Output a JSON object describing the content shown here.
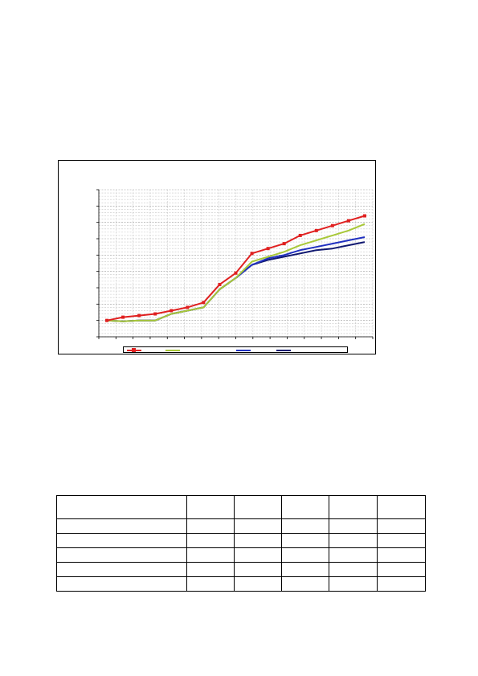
{
  "chart_data": {
    "type": "line",
    "title": "",
    "xlabel": "",
    "ylabel": "",
    "x": [
      1,
      2,
      3,
      4,
      5,
      6,
      7,
      8,
      9,
      10,
      11,
      12,
      13,
      14,
      15,
      16,
      17
    ],
    "ylim": [
      0,
      180
    ],
    "grid": true,
    "legend_position": "bottom",
    "series": [
      {
        "color": "#e02020",
        "marker": "square",
        "values": [
          20,
          24,
          26,
          28,
          32,
          36,
          42,
          64,
          78,
          102,
          108,
          114,
          124,
          130,
          136,
          142,
          148
        ]
      },
      {
        "color": "#a8c838",
        "marker": "none",
        "values": [
          20,
          19,
          20,
          20,
          28,
          32,
          36,
          58,
          72,
          92,
          98,
          104,
          112,
          118,
          124,
          130,
          138
        ]
      },
      {
        "color": "#2030c0",
        "marker": "none",
        "values": [
          20,
          19,
          20,
          20,
          28,
          32,
          36,
          58,
          72,
          88,
          96,
          100,
          106,
          110,
          114,
          118,
          122
        ]
      },
      {
        "color": "#101870",
        "marker": "none",
        "values": [
          20,
          19,
          20,
          20,
          28,
          32,
          36,
          58,
          72,
          88,
          94,
          98,
          102,
          106,
          108,
          112,
          116
        ]
      }
    ]
  },
  "table": {
    "header": [
      "",
      "",
      "",
      "",
      "",
      ""
    ],
    "rows": [
      [
        "",
        "",
        "",
        "",
        "",
        ""
      ],
      [
        "",
        "",
        "",
        "",
        "",
        ""
      ],
      [
        "",
        "",
        "",
        "",
        "",
        ""
      ],
      [
        "",
        "",
        "",
        "",
        "",
        ""
      ],
      [
        "",
        "",
        "",
        "",
        "",
        ""
      ]
    ]
  }
}
